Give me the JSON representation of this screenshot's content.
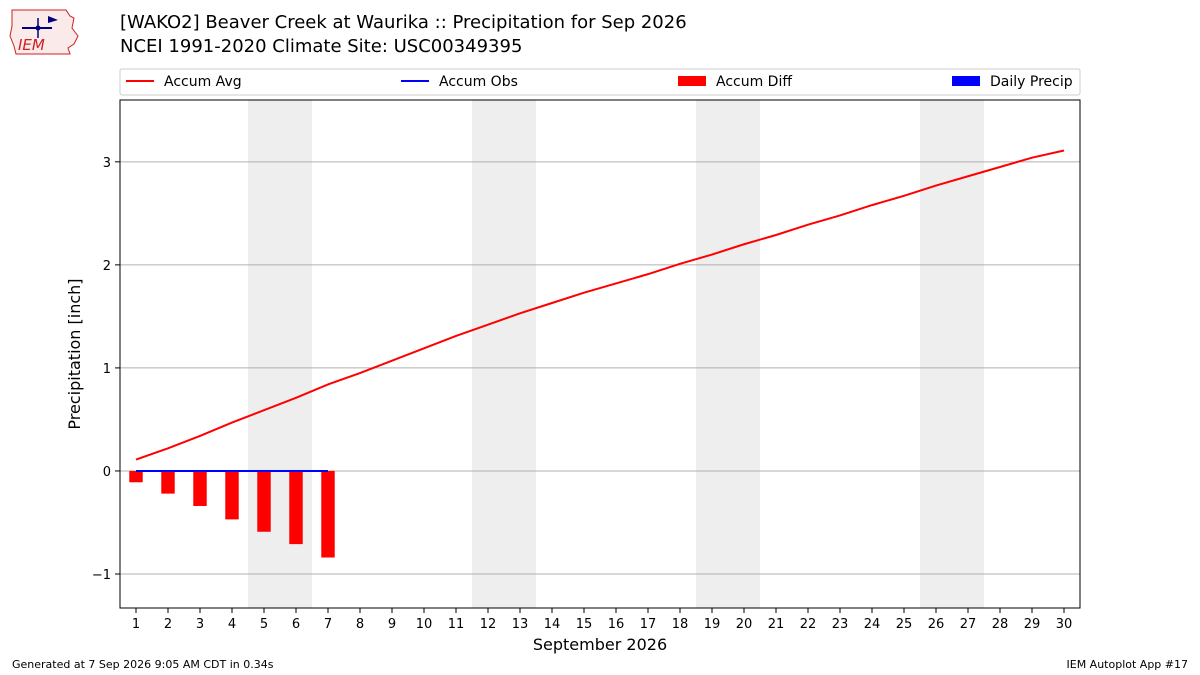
{
  "header": {
    "title_line1": "[WAKO2] Beaver Creek at Waurika :: Precipitation for Sep 2026",
    "title_line2": "NCEI 1991-2020 Climate Site: USC00349395",
    "logo_text": "IEM"
  },
  "footer": {
    "generated": "Generated at 7 Sep 2026 9:05 AM CDT in 0.34s",
    "app": "IEM Autoplot App #17"
  },
  "colors": {
    "avg": "#ff0000",
    "obs": "#0000ff",
    "diff": "#ff0000",
    "daily": "#0000ff",
    "weekend": "#eeeeee"
  },
  "chart_data": {
    "type": "line",
    "xlabel": "September 2026",
    "ylabel": "Precipitation [inch]",
    "x": [
      1,
      2,
      3,
      4,
      5,
      6,
      7,
      8,
      9,
      10,
      11,
      12,
      13,
      14,
      15,
      16,
      17,
      18,
      19,
      20,
      21,
      22,
      23,
      24,
      25,
      26,
      27,
      28,
      29,
      30
    ],
    "xlim": [
      0.5,
      30.5
    ],
    "ylim": [
      -1.33,
      3.6
    ],
    "yticks": [
      -1,
      0,
      1,
      2,
      3
    ],
    "ytick_labels": [
      "−1",
      "0",
      "1",
      "2",
      "3"
    ],
    "grid": "horizontal",
    "legend": {
      "placement": "top",
      "entries": [
        "Accum Avg",
        "Accum Obs",
        "Accum Diff",
        "Daily Precip"
      ]
    },
    "weekend_days": [
      [
        5,
        6
      ],
      [
        12,
        13
      ],
      [
        19,
        20
      ],
      [
        26,
        27
      ]
    ],
    "series": [
      {
        "name": "Accum Avg",
        "kind": "line",
        "values": [
          0.11,
          0.22,
          0.34,
          0.47,
          0.59,
          0.71,
          0.84,
          0.95,
          1.07,
          1.19,
          1.31,
          1.42,
          1.53,
          1.63,
          1.73,
          1.82,
          1.91,
          2.01,
          2.1,
          2.2,
          2.29,
          2.39,
          2.48,
          2.58,
          2.67,
          2.77,
          2.86,
          2.95,
          3.04,
          3.11
        ]
      },
      {
        "name": "Accum Obs",
        "kind": "line",
        "x": [
          1,
          2,
          3,
          4,
          5,
          6,
          7
        ],
        "values": [
          0,
          0,
          0,
          0,
          0,
          0,
          0
        ]
      },
      {
        "name": "Accum Diff",
        "kind": "bar",
        "x": [
          1,
          2,
          3,
          4,
          5,
          6,
          7
        ],
        "values": [
          -0.11,
          -0.22,
          -0.34,
          -0.47,
          -0.59,
          -0.71,
          -0.84
        ]
      },
      {
        "name": "Daily Precip",
        "kind": "bar",
        "x": [],
        "values": []
      }
    ]
  }
}
